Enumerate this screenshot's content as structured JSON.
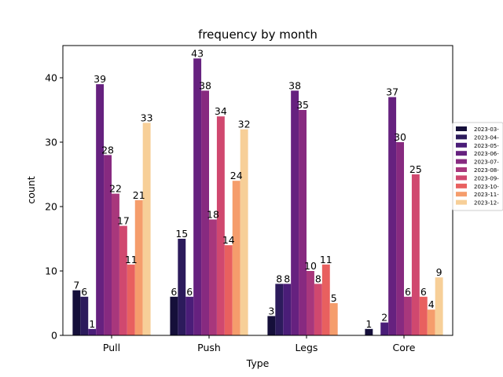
{
  "chart_data": {
    "type": "bar",
    "title": "frequency by month",
    "xlabel": "Type",
    "ylabel": "count",
    "categories": [
      "Pull",
      "Push",
      "Legs",
      "Core"
    ],
    "ylim": [
      0,
      45
    ],
    "yticks": [
      0,
      10,
      20,
      30,
      40
    ],
    "legend_position": "right",
    "grid": false,
    "series": [
      {
        "name": "2023-03-",
        "color": "#150f3a",
        "values": [
          7,
          6,
          3,
          1
        ]
      },
      {
        "name": "2023-04-",
        "color": "#2c1b5c",
        "values": [
          6,
          15,
          8,
          0
        ]
      },
      {
        "name": "2023-05-",
        "color": "#4a1d78",
        "values": [
          1,
          6,
          8,
          2
        ]
      },
      {
        "name": "2023-06-",
        "color": "#66217f",
        "values": [
          39,
          43,
          38,
          37
        ]
      },
      {
        "name": "2023-07-",
        "color": "#872a80",
        "values": [
          28,
          38,
          35,
          30
        ]
      },
      {
        "name": "2023-08-",
        "color": "#a8377c",
        "values": [
          22,
          18,
          10,
          6
        ]
      },
      {
        "name": "2023-09-",
        "color": "#d0486f",
        "values": [
          17,
          34,
          8,
          25
        ]
      },
      {
        "name": "2023-10-",
        "color": "#e8605f",
        "values": [
          11,
          14,
          11,
          6
        ]
      },
      {
        "name": "2023-11-",
        "color": "#f59d6c",
        "values": [
          21,
          24,
          5,
          4
        ]
      },
      {
        "name": "2023-12-",
        "color": "#f7cf98",
        "values": [
          33,
          32,
          0,
          9
        ]
      }
    ]
  }
}
